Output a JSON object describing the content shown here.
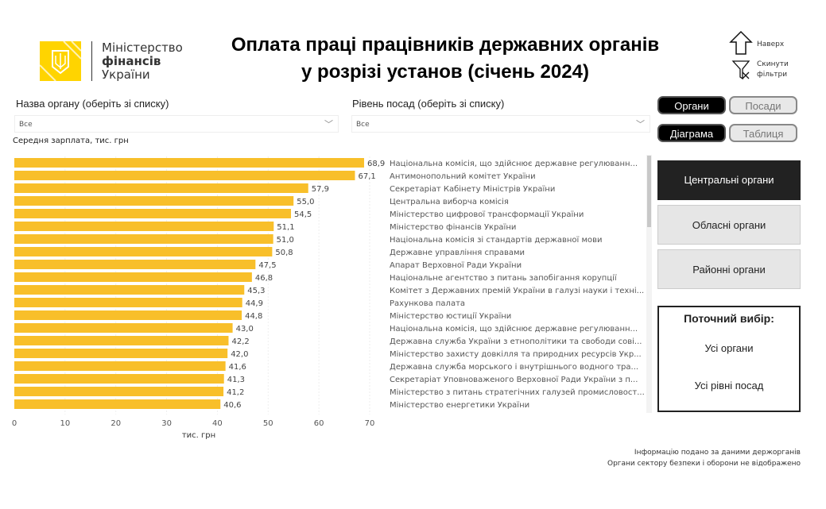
{
  "logo": {
    "line1": "Міністерство",
    "line2": "фінансів",
    "line3": "України"
  },
  "title": {
    "line1": "Оплата праці працівників державних органів",
    "line2": "у розрізі установ (січень 2024)"
  },
  "links": {
    "top": "Наверх",
    "reset_line1": "Скинути",
    "reset_line2": "фільтри"
  },
  "filters": {
    "org_label": "Назва органу (оберіть зі списку)",
    "org_value": "Все",
    "level_label": "Рівень посад (оберіть зі списку)",
    "level_value": "Все"
  },
  "toggles": {
    "organs": "Органи",
    "positions": "Посади",
    "chart": "Діаграма",
    "table": "Таблиця"
  },
  "categories": [
    "Центральні органи",
    "Обласні органи",
    "Районні органи"
  ],
  "selection": {
    "title": "Поточний вибір:",
    "org": "Усі органи",
    "level": "Усі рівні посад"
  },
  "notes": {
    "line1": "Інформацію подано за даними держорганів",
    "line2": "Органи сектору безпеки і оборони не відображено"
  },
  "colors": {
    "bar": "#f8bf2a"
  },
  "chart_data": {
    "type": "bar",
    "orientation": "horizontal",
    "title": "Середня зарплата, тис. грн",
    "xlabel": "тис. грн",
    "xlim": [
      0,
      70
    ],
    "xticks": [
      "0",
      "10",
      "20",
      "30",
      "40",
      "50",
      "60",
      "70"
    ],
    "grid": true,
    "categories": [
      "Національна комісія, що здійснює державне регулюванн...",
      "Антимонопольний комітет України",
      "Секретаріат Кабінету Міністрів України",
      "Центральна виборча комісія",
      "Міністерство цифрової трансформації України",
      "Міністерство фінансів України",
      "Національна комісія зі стандартів державної мови",
      "Державне управління справами",
      "Апарат Верховної Ради України",
      "Національне агентство з питань запобігання корупції",
      "Комітет з Державних премій України в галузі науки і техні...",
      "Рахункова палата",
      "Міністерство юстиції України",
      "Національна комісія, що здійснює державне регулюванн...",
      "Державна служба України з етнополітики та свободи сові...",
      "Міністерство захисту довкілля та природних ресурсів Укр...",
      "Державна служба морського і внутрішнього водного тра...",
      "Секретаріат Уповноваженого Верховної Ради України з п...",
      "Міністерство з питань стратегічних галузей промисловост...",
      "Міністерство енергетики України"
    ],
    "values": [
      68.9,
      67.1,
      57.9,
      55.0,
      54.5,
      51.1,
      51.0,
      50.8,
      47.5,
      46.8,
      45.3,
      44.9,
      44.8,
      43.0,
      42.2,
      42.0,
      41.6,
      41.3,
      41.2,
      40.6
    ],
    "value_labels": [
      "68,9",
      "67,1",
      "57,9",
      "55,0",
      "54,5",
      "51,1",
      "51,0",
      "50,8",
      "47,5",
      "46,8",
      "45,3",
      "44,9",
      "44,8",
      "43,0",
      "42,2",
      "42,0",
      "41,6",
      "41,3",
      "41,2",
      "40,6"
    ]
  }
}
